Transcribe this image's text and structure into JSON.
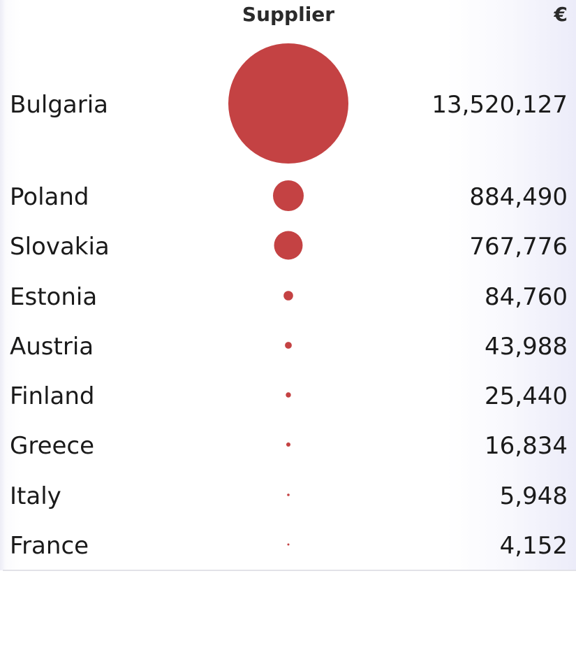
{
  "chart_data": {
    "type": "bubble",
    "header": {
      "category": "Supplier",
      "value": "€"
    },
    "categories": [
      "Bulgaria",
      "Poland",
      "Slovakia",
      "Estonia",
      "Austria",
      "Finland",
      "Greece",
      "Italy",
      "France"
    ],
    "values": [
      13520127,
      884490,
      767776,
      84760,
      43988,
      25440,
      16834,
      5948,
      4152
    ],
    "value_labels": [
      "13,520,127",
      "884,490",
      "767,776",
      "84,760",
      "43,988",
      "25,440",
      "16,834",
      "5,948",
      "4,152"
    ],
    "bubble_color": "#c44243"
  }
}
